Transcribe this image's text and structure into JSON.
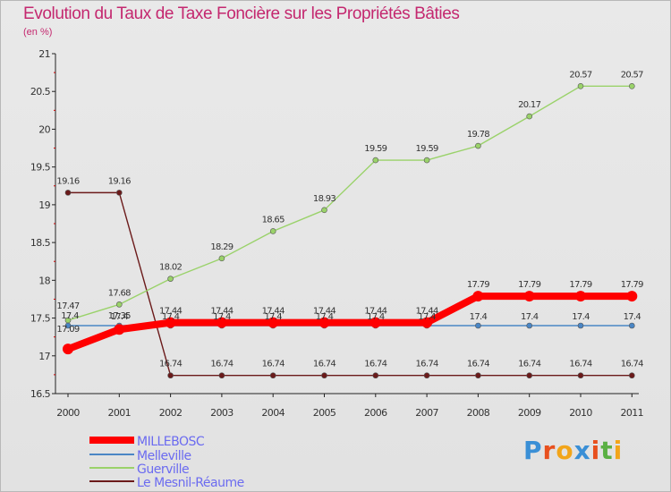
{
  "title": "Evolution du Taux de Taxe Foncière sur les Propriétés Bâties",
  "subtitle": "(en %)",
  "logo": {
    "chars": [
      "P",
      "r",
      "o",
      "x",
      "i",
      "t",
      "i"
    ],
    "colors": [
      "#3a8fd6",
      "#e8501e",
      "#f2a51a",
      "#3a8fd6",
      "#e8501e",
      "#5ab043",
      "#f2a51a"
    ]
  },
  "chart_data": {
    "type": "line",
    "x": [
      "2000",
      "2001",
      "2002",
      "2003",
      "2004",
      "2005",
      "2006",
      "2007",
      "2008",
      "2009",
      "2010",
      "2011"
    ],
    "ylim": [
      16.5,
      21
    ],
    "yticks": [
      "16.5",
      "17",
      "17.5",
      "18",
      "18.5",
      "19",
      "19.5",
      "20",
      "20.5",
      "21"
    ],
    "grid": false,
    "legend": "bottom-left",
    "series": [
      {
        "name": "MILLEBOSC",
        "color": "#ff0000",
        "values": [
          17.09,
          17.35,
          17.44,
          17.44,
          17.44,
          17.44,
          17.44,
          17.44,
          17.79,
          17.79,
          17.79,
          17.79
        ],
        "labels": [
          "17.09",
          "17.35",
          "17.44",
          "17.44",
          "17.44",
          "17.44",
          "17.44",
          "17.44",
          "17.79",
          "17.79",
          "17.79",
          "17.79"
        ]
      },
      {
        "name": "Melleville",
        "color": "#4a86c5",
        "values": [
          17.4,
          17.4,
          17.4,
          17.4,
          17.4,
          17.4,
          17.4,
          17.4,
          17.4,
          17.4,
          17.4,
          17.4
        ],
        "labels": [
          "17.4",
          "17.4",
          "17.4",
          "17.4",
          "17.4",
          "17.4",
          "17.4",
          "17.4",
          "17.4",
          "17.4",
          "17.4",
          "17.4"
        ]
      },
      {
        "name": "Guerville",
        "color": "#9ad26a",
        "values": [
          17.47,
          17.68,
          18.02,
          18.29,
          18.65,
          18.93,
          19.59,
          19.59,
          19.78,
          20.17,
          20.57,
          20.57
        ],
        "labels": [
          "17.47",
          "17.68",
          "18.02",
          "18.29",
          "18.65",
          "18.93",
          "19.59",
          "19.59",
          "19.78",
          "20.17",
          "20.57",
          "20.57"
        ]
      },
      {
        "name": "Le Mesnil-Réaume",
        "color": "#6b1a1a",
        "values": [
          19.16,
          19.16,
          16.74,
          16.74,
          16.74,
          16.74,
          16.74,
          16.74,
          16.74,
          16.74,
          16.74,
          16.74
        ],
        "labels": [
          "19.16",
          "19.16",
          "16.74",
          "16.74",
          "16.74",
          "16.74",
          "16.74",
          "16.74",
          "16.74",
          "16.74",
          "16.74",
          "16.74"
        ]
      }
    ]
  }
}
